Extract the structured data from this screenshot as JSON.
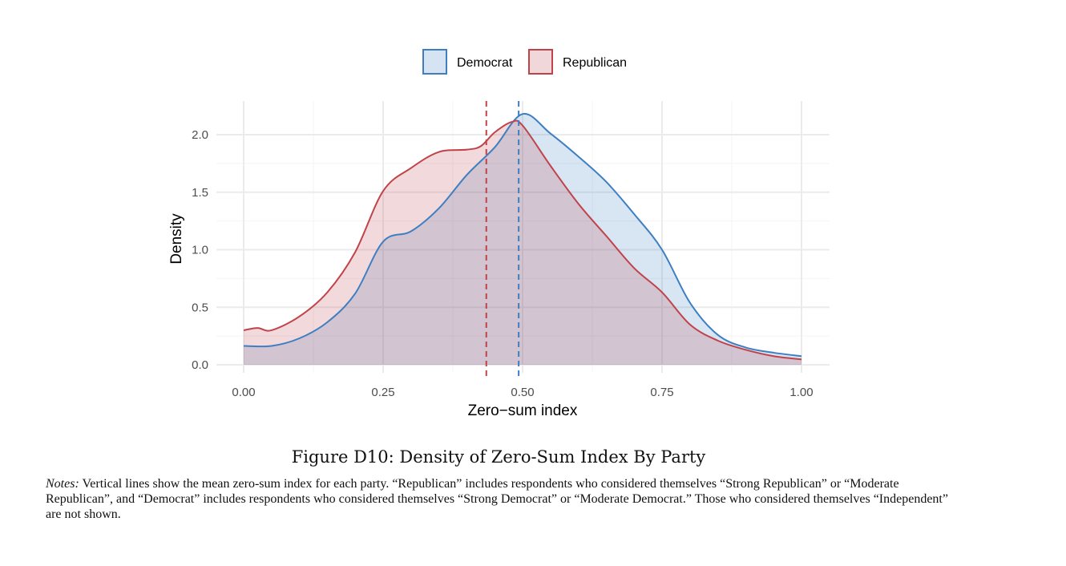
{
  "chart_data": {
    "type": "area",
    "title": "",
    "xlabel": "Zero−sum index",
    "ylabel": "Density",
    "xlim": [
      0,
      1
    ],
    "ylim": [
      0,
      2.2
    ],
    "xticks": [
      "0.00",
      "0.25",
      "0.50",
      "0.75",
      "1.00"
    ],
    "xtick_values": [
      0,
      0.25,
      0.5,
      0.75,
      1.0
    ],
    "yticks": [
      "0.0",
      "0.5",
      "1.0",
      "1.5",
      "2.0"
    ],
    "ytick_values": [
      0,
      0.5,
      1.0,
      1.5,
      2.0
    ],
    "grid": true,
    "legend_position": "top",
    "series": [
      {
        "name": "Democrat",
        "color": "#3e7fc1",
        "fill": "#d6e3f2",
        "mean": 0.493,
        "x": [
          0,
          0.05,
          0.1,
          0.15,
          0.2,
          0.25,
          0.3,
          0.35,
          0.4,
          0.45,
          0.5,
          0.55,
          0.6,
          0.65,
          0.7,
          0.75,
          0.8,
          0.85,
          0.9,
          0.95,
          1.0
        ],
        "y": [
          0.164,
          0.164,
          0.23,
          0.37,
          0.62,
          1.07,
          1.16,
          1.36,
          1.65,
          1.89,
          2.18,
          2.01,
          1.81,
          1.59,
          1.31,
          1.0,
          0.54,
          0.26,
          0.15,
          0.105,
          0.075
        ]
      },
      {
        "name": "Republican",
        "color": "#c0434a",
        "fill": "#f0d8da",
        "mean": 0.435,
        "x": [
          0,
          0.025,
          0.05,
          0.1,
          0.15,
          0.2,
          0.25,
          0.3,
          0.35,
          0.4,
          0.425,
          0.45,
          0.48,
          0.5,
          0.55,
          0.6,
          0.65,
          0.7,
          0.75,
          0.8,
          0.85,
          0.9,
          0.95,
          1.0
        ],
        "y": [
          0.3,
          0.32,
          0.3,
          0.42,
          0.63,
          0.98,
          1.51,
          1.71,
          1.85,
          1.87,
          1.9,
          2.02,
          2.11,
          2.08,
          1.73,
          1.4,
          1.12,
          0.84,
          0.63,
          0.35,
          0.21,
          0.13,
          0.075,
          0.047
        ]
      }
    ]
  },
  "caption": "Figure D10: Density of Zero-Sum Index By Party",
  "notes": {
    "label": "Notes:",
    "text": " Vertical lines show the mean zero-sum index for each party. “Republican” includes respondents who considered themselves “Strong Republican” or “Moderate Republican”, and “Democrat” includes respondents who considered themselves “Strong Democrat” or “Moderate Democrat.” Those who considered themselves “Independent” are not shown."
  }
}
